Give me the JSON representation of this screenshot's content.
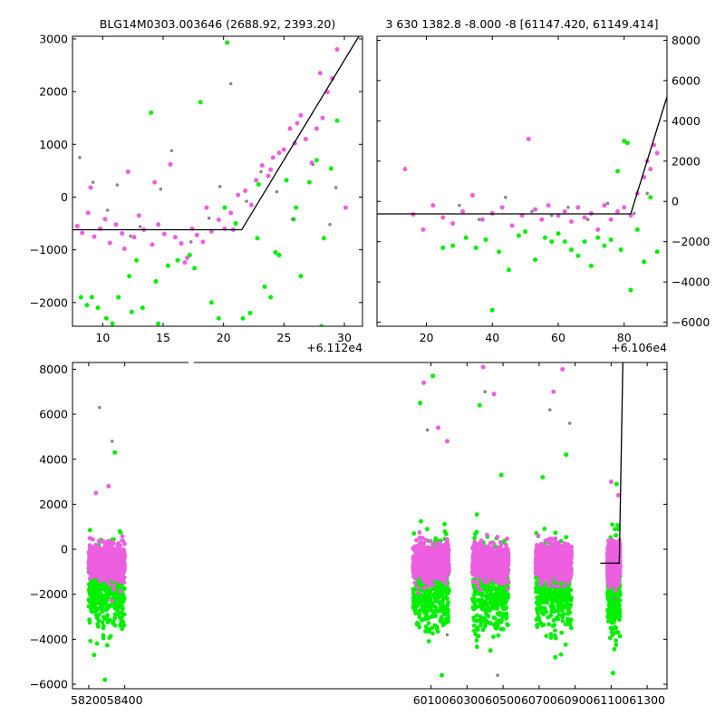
{
  "chart_data": [
    {
      "id": "panel-top-left",
      "type": "scatter",
      "title": "BLG14M0303.003646 (2688.92, 2393.20)",
      "axis_offset_label": "+6.112e4",
      "xlim": [
        7.5,
        31.5
      ],
      "ylim": [
        -2450,
        3050
      ],
      "x_ticks": [
        10,
        15,
        20,
        25,
        30
      ],
      "x_tick_labels": [
        "10",
        "15",
        "20",
        "25",
        "30"
      ],
      "y_ticks": [
        -2000,
        -1000,
        0,
        1000,
        2000,
        3000
      ],
      "y_tick_labels": [
        "−2000",
        "−1000",
        "0",
        "1000",
        "2000",
        "3000"
      ],
      "y_axis_side": "left",
      "model_line": {
        "x": [
          7.5,
          21.5,
          31.2
        ],
        "y": [
          -620,
          -620,
          3050
        ]
      },
      "series": [
        {
          "name": "magenta",
          "color": "#ee5ee0",
          "x": [
            7.9,
            8.3,
            8.8,
            9.3,
            9.8,
            10.2,
            10.6,
            11.1,
            11.6,
            12.1,
            12.6,
            13.0,
            13.4,
            14.1,
            14.6,
            15.1,
            15.6,
            16.0,
            16.5,
            17.0,
            17.4,
            17.8,
            18.3,
            19.0,
            19.6,
            20.1,
            20.6,
            21.2,
            21.8,
            22.3,
            22.7,
            23.2,
            23.7,
            24.1,
            24.6,
            25.0,
            25.5,
            25.9,
            26.4,
            26.8,
            27.3,
            27.7,
            28.2,
            28.6,
            29.0,
            29.4,
            9.0,
            11.8,
            14.3,
            16.8,
            18.6,
            20.8,
            23.9,
            26.1,
            28.0,
            30.1
          ],
          "y": [
            -550,
            -680,
            -300,
            -750,
            -600,
            -420,
            -870,
            -520,
            -690,
            480,
            -760,
            -350,
            -620,
            -900,
            -520,
            -700,
            620,
            -760,
            -880,
            -1150,
            -600,
            -720,
            -850,
            -650,
            -430,
            -600,
            -300,
            40,
            120,
            -150,
            320,
            600,
            400,
            750,
            840,
            900,
            1300,
            1020,
            1550,
            1100,
            650,
            1300,
            1500,
            1990,
            2250,
            2800,
            180,
            -980,
            280,
            -1240,
            -200,
            -620,
            520,
            1400,
            2350,
            -200
          ]
        },
        {
          "name": "green",
          "color": "#00f000",
          "x": [
            8.2,
            9.1,
            9.6,
            10.3,
            10.8,
            11.3,
            12.2,
            12.8,
            13.3,
            14.0,
            14.6,
            15.4,
            16.2,
            17.2,
            18.1,
            19.0,
            19.6,
            20.3,
            21.0,
            21.6,
            22.2,
            22.8,
            23.4,
            23.9,
            24.6,
            25.2,
            25.8,
            26.4,
            27.1,
            27.7,
            28.3,
            28.9,
            29.4,
            8.7,
            12.4,
            14.4,
            17.6,
            20.1,
            22.9,
            24.3,
            26.0,
            28.1
          ],
          "y": [
            -1900,
            -1900,
            -2100,
            -2300,
            -2400,
            -1900,
            -1500,
            -1200,
            -2100,
            1600,
            -2400,
            -1300,
            -1200,
            -1100,
            1800,
            -2000,
            -2300,
            2930,
            -500,
            -2300,
            -2200,
            -780,
            -1700,
            -1900,
            -1100,
            320,
            -420,
            -1500,
            280,
            700,
            -780,
            540,
            1450,
            -2050,
            -2180,
            -1600,
            -1350,
            -200,
            240,
            -1050,
            -200,
            -2450
          ]
        },
        {
          "name": "gray",
          "color": "#888888",
          "x": [
            8.1,
            9.2,
            10.4,
            11.2,
            12.3,
            13.1,
            14.8,
            15.7,
            17.3,
            18.8,
            19.7,
            20.6,
            21.9,
            23.1,
            24.4,
            25.7,
            27.4,
            28.8,
            29.3
          ],
          "y": [
            750,
            280,
            -250,
            230,
            -740,
            -560,
            150,
            880,
            -850,
            -400,
            200,
            2150,
            -80,
            480,
            100,
            -420,
            620,
            -520,
            180
          ]
        }
      ]
    },
    {
      "id": "panel-top-right",
      "type": "scatter",
      "title": "3 630 1382.8 -8.000 -8 [61147.420, 61149.414]",
      "axis_offset_label": "+6.106e4",
      "xlim": [
        5,
        93
      ],
      "ylim": [
        -6200,
        8200
      ],
      "x_ticks": [
        20,
        40,
        60,
        80
      ],
      "x_tick_labels": [
        "20",
        "40",
        "60",
        "80"
      ],
      "y_ticks": [
        -6000,
        -4000,
        -2000,
        0,
        2000,
        4000,
        6000,
        8000
      ],
      "y_tick_labels": [
        "−6000",
        "−4000",
        "−2000",
        "0",
        "2000",
        "4000",
        "6000",
        "8000"
      ],
      "y_axis_side": "right",
      "model_line": {
        "x": [
          5,
          82,
          93
        ],
        "y": [
          -620,
          -620,
          5200
        ]
      },
      "series": [
        {
          "name": "magenta",
          "color": "#ee5ee0",
          "x": [
            13.5,
            16,
            19,
            22,
            25,
            28,
            31,
            34,
            37,
            40,
            43,
            46,
            49,
            51,
            53,
            55,
            57,
            60,
            62,
            64,
            66,
            68,
            70,
            72,
            74,
            76,
            78,
            80,
            82,
            84,
            86,
            87,
            88,
            89,
            90
          ],
          "y": [
            1600,
            -650,
            -1400,
            -200,
            -800,
            -1100,
            -500,
            300,
            -900,
            -600,
            -300,
            -1200,
            -700,
            3100,
            -400,
            -900,
            -200,
            -700,
            -500,
            -1000,
            -300,
            -800,
            -600,
            -1400,
            -200,
            -900,
            -500,
            -300,
            -700,
            400,
            1200,
            2000,
            1600,
            2800,
            2400
          ]
        },
        {
          "name": "green",
          "color": "#00f000",
          "x": [
            25,
            28,
            32,
            35,
            38,
            40,
            42,
            45,
            48,
            50,
            53,
            56,
            58,
            60,
            62,
            64,
            66,
            68,
            70,
            72,
            74,
            76,
            78,
            80,
            82,
            84,
            86,
            88,
            90,
            81,
            79
          ],
          "y": [
            -2300,
            -2200,
            -1800,
            -2300,
            -1900,
            -5400,
            -2500,
            -3400,
            -1700,
            -1500,
            -2900,
            -1800,
            -2000,
            -1600,
            -2000,
            -2400,
            -2700,
            -2000,
            -3200,
            -1800,
            -2200,
            -1900,
            1500,
            3000,
            -4400,
            -1400,
            -3000,
            200,
            -2500,
            2900,
            -2400
          ]
        },
        {
          "name": "gray",
          "color": "#888888",
          "x": [
            30,
            36,
            44,
            52,
            58,
            63,
            69,
            75,
            83,
            87
          ],
          "y": [
            -200,
            -900,
            200,
            -500,
            -700,
            -300,
            -900,
            -100,
            -600,
            400
          ]
        }
      ]
    },
    {
      "id": "panel-bottom",
      "type": "scatter",
      "title": "",
      "axis_offset_label": "",
      "xlim": [
        58110,
        61410
      ],
      "ylim": [
        -6200,
        8300
      ],
      "x_ticks": [
        58200,
        58400,
        60100,
        60300,
        60500,
        60700,
        60900,
        61100,
        61300
      ],
      "x_tick_labels": [
        "58200",
        "58400",
        "60100",
        "60300",
        "60500",
        "60700",
        "60900",
        "61100",
        "61300"
      ],
      "y_ticks": [
        -6000,
        -4000,
        -2000,
        0,
        2000,
        4000,
        6000,
        8000
      ],
      "y_tick_labels": [
        "−6000",
        "−4000",
        "−2000",
        "0",
        "2000",
        "4000",
        "6000",
        "8000"
      ],
      "y_axis_side": "left",
      "model_line": {
        "x": [
          61040,
          61145,
          61165
        ],
        "y": [
          -620,
          -620,
          8300
        ]
      },
      "seasons": [
        {
          "start": 58200,
          "end": 58400
        },
        {
          "start": 60000,
          "end": 60200
        },
        {
          "start": 60330,
          "end": 60530
        },
        {
          "start": 60680,
          "end": 60880
        },
        {
          "start": 61080,
          "end": 61150
        }
      ],
      "series": [
        {
          "name": "green",
          "color": "#00f000",
          "x": [
            58230,
            58290,
            58345,
            60040,
            60110,
            60160,
            60370,
            60430,
            60490,
            60720,
            60790,
            60850,
            61110,
            61130
          ],
          "y": [
            -4700,
            -5800,
            4300,
            6500,
            7700,
            -5600,
            6400,
            -4500,
            3300,
            3200,
            -4800,
            4200,
            -5500,
            2900
          ]
        },
        {
          "name": "gray",
          "color": "#888888",
          "x": [
            58260,
            58330,
            60080,
            60190,
            60400,
            60470,
            60760,
            60870,
            61120
          ],
          "y": [
            6300,
            4800,
            5300,
            -3800,
            7000,
            -5600,
            6200,
            5600,
            -2200
          ]
        },
        {
          "name": "magenta",
          "color": "#ee5ee0",
          "x": [
            58240,
            58310,
            60060,
            60140,
            60190,
            60390,
            60450,
            60780,
            60830,
            61100,
            61140
          ],
          "y": [
            2500,
            2800,
            7400,
            5400,
            4800,
            8100,
            6900,
            7000,
            8000,
            3000,
            2400
          ]
        }
      ]
    }
  ]
}
